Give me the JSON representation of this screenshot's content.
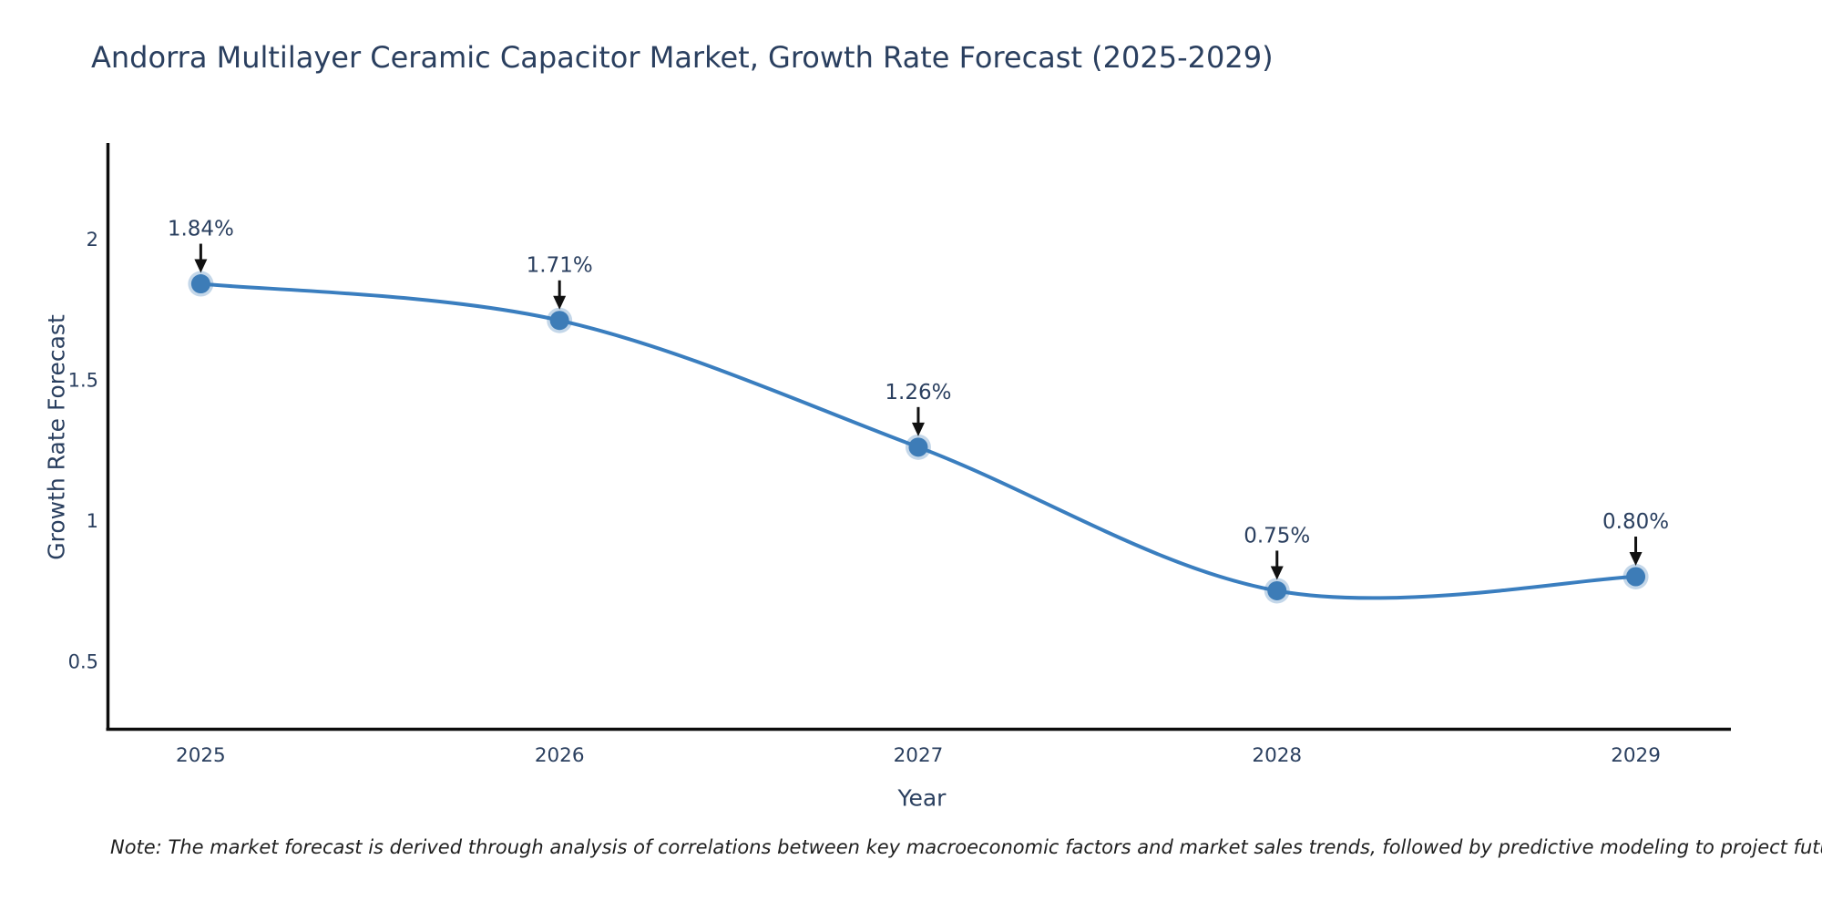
{
  "page": {
    "background": "#ffffff"
  },
  "chart_data": {
    "type": "line",
    "title": "Andorra Multilayer Ceramic Capacitor Market, Growth Rate Forecast (2025-2029)",
    "xlabel": "Year",
    "ylabel": "Growth Rate Forecast",
    "categories": [
      2025,
      2026,
      2027,
      2028,
      2029
    ],
    "series": [
      {
        "name": "Growth Rate Forecast",
        "values": [
          1.84,
          1.71,
          1.26,
          0.75,
          0.8
        ],
        "point_labels": [
          "1.84%",
          "1.71%",
          "1.26%",
          "0.75%",
          "0.80%"
        ]
      }
    ],
    "line_shape": "spline",
    "markers": true,
    "annotations_with_arrows": true,
    "y_ticks": [
      0.5,
      1,
      1.5,
      2
    ],
    "ylim": [
      0.25,
      2.34
    ],
    "x_pad_years": [
      0.26,
      0.25
    ],
    "grid": false,
    "legend_position": "none",
    "colors": {
      "line": "#3a7ebf",
      "marker": "#3d7cb7",
      "marker_halo": "rgba(61,124,183,0.30)",
      "axis_line": "#0d0d0d",
      "arrow": "#111111",
      "text": "#2a3f5f",
      "note_text": "#1f1f1f",
      "background": "#ffffff"
    }
  },
  "note": {
    "text": "Note: The market forecast is derived through analysis of correlations between key macroeconomic factors and market sales trends, followed by predictive modeling to project future sales"
  }
}
